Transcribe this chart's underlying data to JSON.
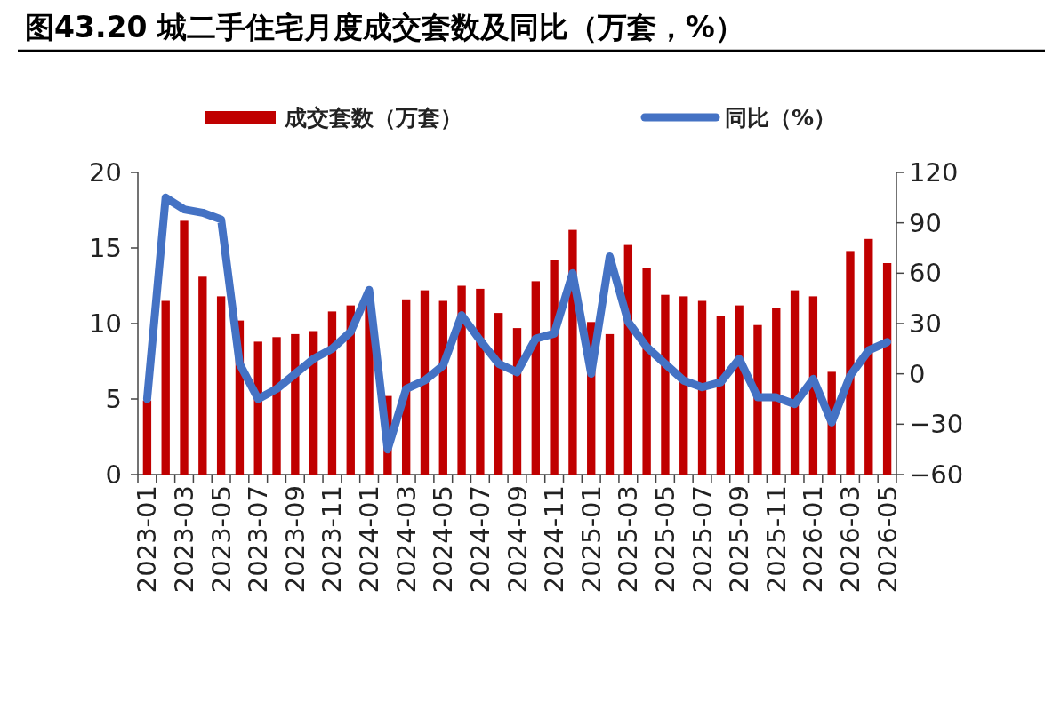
{
  "chart_data": {
    "type": "bar",
    "title": "图43.20 城二手住宅月度成交套数及同比（万套，%）",
    "categories": [
      "2023-01",
      null,
      "2023-03",
      null,
      "2023-05",
      null,
      "2023-07",
      null,
      "2023-09",
      null,
      "2023-11",
      null,
      "2024-01",
      null,
      "2024-03",
      null,
      "2024-05",
      null,
      "2024-07",
      null,
      "2024-09",
      null,
      "2024-11",
      null,
      "2025-01",
      null,
      "2025-03",
      null,
      "2025-05",
      null,
      "2025-07",
      null,
      "2025-09",
      null,
      "2025-11",
      null,
      "2026-01",
      null,
      "2026-03",
      null,
      "2026-05"
    ],
    "series": [
      {
        "name": "成交套数（万套）",
        "color": "#c00000",
        "values": [
          4.9,
          11.5,
          16.8,
          13.1,
          11.8,
          10.2,
          8.8,
          9.1,
          9.3,
          9.5,
          10.8,
          11.2,
          11.3,
          5.2,
          11.6,
          12.2,
          11.5,
          12.5,
          12.3,
          10.7,
          9.7,
          12.8,
          14.2,
          16.2,
          10.1,
          9.3,
          15.2,
          13.7,
          11.9,
          11.8,
          11.5,
          10.5,
          11.2,
          9.9,
          11.0,
          12.2,
          11.8,
          6.8,
          14.8,
          15.6,
          14.0
        ]
      },
      {
        "name": "同比（%）",
        "type": "line",
        "axis": "y2",
        "color": "#4472c4",
        "values": [
          -15,
          105,
          98,
          96,
          92,
          6,
          -15,
          -9,
          0,
          9,
          15,
          25,
          50,
          -45,
          -9,
          -4,
          5,
          35,
          20,
          6,
          1,
          21,
          24,
          60,
          0,
          70,
          31,
          16,
          6,
          -4,
          -8,
          -5,
          9,
          -14,
          -14,
          -18,
          -3,
          -29,
          -1,
          14,
          19
        ]
      }
    ],
    "ylim": [
      0,
      20
    ],
    "yticks": [
      0,
      5,
      10,
      15,
      20
    ],
    "y2lim": [
      -60,
      120
    ],
    "y2ticks": [
      {
        "value": -60,
        "label": "−60"
      },
      {
        "value": -30,
        "label": "−30"
      },
      0,
      30,
      60,
      90,
      120
    ],
    "legend": "top",
    "grid": false,
    "marker": "none",
    "line_style": "solid"
  }
}
